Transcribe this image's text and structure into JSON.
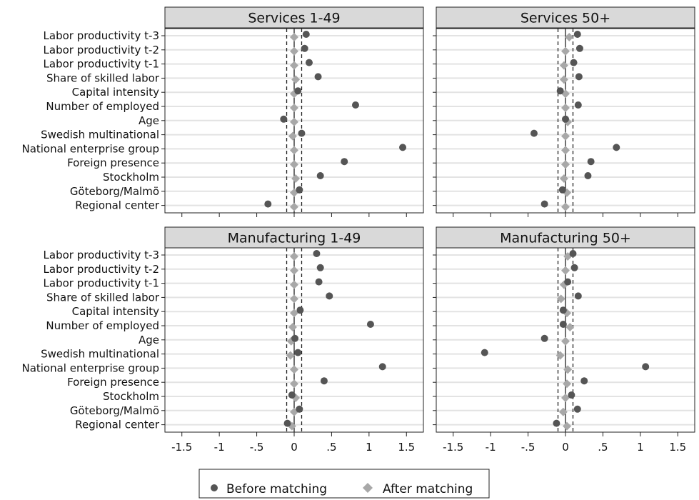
{
  "chart_data": [
    {
      "type": "scatter",
      "title": "Services 1-49",
      "categories": [
        "Labor productivity t-3",
        "Labor productivity t-2",
        "Labor productivity t-1",
        "Share of skilled labor",
        "Capital intensity",
        "Number of employed",
        "Age",
        "Swedish multinational",
        "National enterprise group",
        "Foreign presence",
        "Stockholm",
        "Göteborg/Malmö",
        "Regional center"
      ],
      "series": [
        {
          "name": "Before matching",
          "values": [
            0.16,
            0.14,
            0.2,
            0.32,
            0.05,
            0.82,
            -0.14,
            0.1,
            1.45,
            0.67,
            0.35,
            0.07,
            -0.35
          ]
        },
        {
          "name": "After matching",
          "values": [
            0.0,
            0.0,
            0.0,
            0.02,
            0.0,
            0.0,
            0.0,
            -0.02,
            0.0,
            0.0,
            0.02,
            0.0,
            0.0
          ]
        }
      ],
      "xticks": [
        "-1.5",
        "-1",
        "-.5",
        "0",
        ".5",
        "1",
        "1.5"
      ],
      "xlim": [
        -1.65,
        1.65
      ],
      "xline_solid": 0,
      "xlines_dashed": [
        -0.1,
        0.1
      ],
      "show_y_labels": true,
      "show_x_ticks": false
    },
    {
      "type": "scatter",
      "title": "Services 50+",
      "categories": [
        "Labor productivity t-3",
        "Labor productivity t-2",
        "Labor productivity t-1",
        "Share of skilled labor",
        "Capital intensity",
        "Number of employed",
        "Age",
        "Swedish multinational",
        "National enterprise group",
        "Foreign presence",
        "Stockholm",
        "Göteborg/Malmö",
        "Regional center"
      ],
      "series": [
        {
          "name": "Before matching",
          "values": [
            0.16,
            0.19,
            0.11,
            0.18,
            -0.07,
            0.17,
            0.0,
            -0.42,
            0.68,
            0.34,
            0.3,
            -0.04,
            -0.28
          ]
        },
        {
          "name": "After matching",
          "values": [
            0.05,
            0.0,
            -0.02,
            -0.02,
            0.0,
            0.0,
            0.03,
            0.0,
            0.0,
            0.0,
            -0.02,
            0.02,
            0.0
          ]
        }
      ],
      "xticks": [
        "-1.5",
        "-1",
        "-.5",
        "0",
        ".5",
        "1",
        "1.5"
      ],
      "xlim": [
        -1.65,
        1.65
      ],
      "xline_solid": 0,
      "xlines_dashed": [
        -0.1,
        0.1
      ],
      "show_y_labels": false,
      "show_x_ticks": false
    },
    {
      "type": "scatter",
      "title": "Manufacturing 1-49",
      "categories": [
        "Labor productivity t-3",
        "Labor productivity t-2",
        "Labor productivity t-1",
        "Share of skilled labor",
        "Capital intensity",
        "Number of employed",
        "Age",
        "Swedish multinational",
        "National enterprise group",
        "Foreign presence",
        "Stockholm",
        "Göteborg/Malmö",
        "Regional center"
      ],
      "series": [
        {
          "name": "Before matching",
          "values": [
            0.3,
            0.35,
            0.33,
            0.47,
            0.08,
            1.02,
            0.01,
            0.05,
            1.18,
            0.4,
            -0.03,
            0.07,
            -0.09
          ]
        },
        {
          "name": "After matching",
          "values": [
            0.0,
            0.0,
            0.0,
            0.0,
            0.0,
            -0.02,
            -0.04,
            -0.05,
            0.0,
            0.0,
            0.02,
            0.0,
            -0.03
          ]
        }
      ],
      "xticks": [
        "-1.5",
        "-1",
        "-.5",
        "0",
        ".5",
        "1",
        "1.5"
      ],
      "xlim": [
        -1.65,
        1.65
      ],
      "xline_solid": 0,
      "xlines_dashed": [
        -0.1,
        0.1
      ],
      "show_y_labels": true,
      "show_x_ticks": true
    },
    {
      "type": "scatter",
      "title": "Manufacturing 50+",
      "categories": [
        "Labor productivity t-3",
        "Labor productivity t-2",
        "Labor productivity t-1",
        "Share of skilled labor",
        "Capital intensity",
        "Number of employed",
        "Age",
        "Swedish multinational",
        "National enterprise group",
        "Foreign presence",
        "Stockholm",
        "Göteborg/Malmö",
        "Regional center"
      ],
      "series": [
        {
          "name": "Before matching",
          "values": [
            0.1,
            0.12,
            0.03,
            0.17,
            -0.03,
            -0.03,
            -0.28,
            -1.08,
            1.07,
            0.25,
            0.08,
            0.16,
            -0.12
          ]
        },
        {
          "name": "After matching",
          "values": [
            0.03,
            0.0,
            -0.02,
            -0.06,
            0.02,
            0.06,
            0.0,
            -0.07,
            0.03,
            0.02,
            0.0,
            -0.03,
            0.02
          ]
        }
      ],
      "xticks": [
        "-1.5",
        "-1",
        "-.5",
        "0",
        ".5",
        "1",
        "1.5"
      ],
      "xlim": [
        -1.65,
        1.65
      ],
      "xline_solid": 0,
      "xlines_dashed": [
        -0.1,
        0.1
      ],
      "show_y_labels": false,
      "show_x_ticks": true
    }
  ],
  "legend": {
    "items": [
      {
        "label": "Before matching",
        "marker": "circle",
        "color": "#555555"
      },
      {
        "label": "After matching",
        "marker": "diamond",
        "color": "#a8a8a8"
      }
    ]
  },
  "colors": {
    "before": "#555555",
    "after": "#a8a8a8",
    "panel_header": "#d9d9d9",
    "row_band": "#e3e3e3"
  }
}
